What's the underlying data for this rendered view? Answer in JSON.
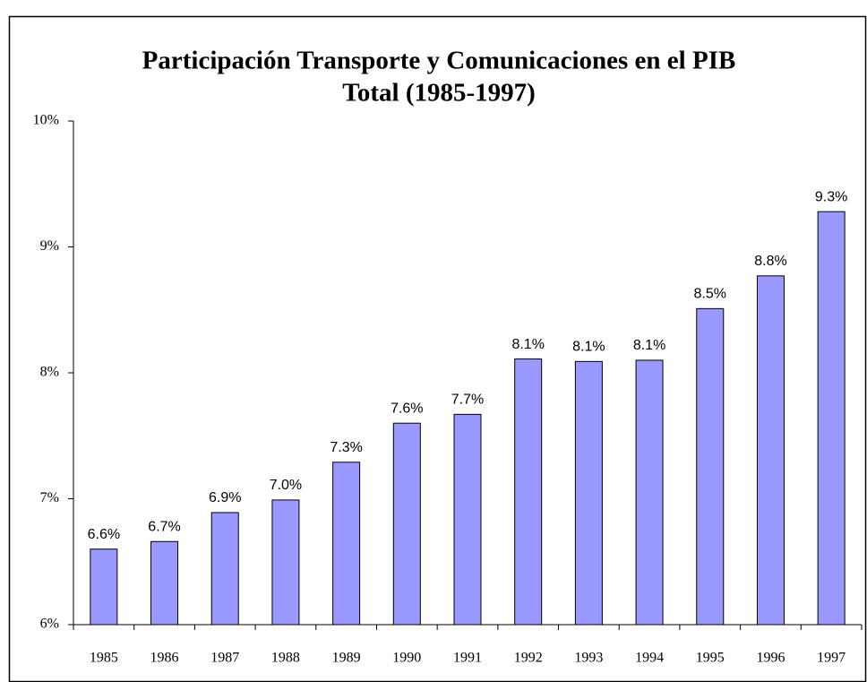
{
  "chart_data": {
    "type": "bar",
    "title": [
      "Participación Transporte y Comunicaciones en el PIB",
      "Total (1985-1997)"
    ],
    "categories": [
      "1985",
      "1986",
      "1987",
      "1988",
      "1989",
      "1990",
      "1991",
      "1992",
      "1993",
      "1994",
      "1995",
      "1996",
      "1997"
    ],
    "values": [
      6.6,
      6.66,
      6.89,
      6.99,
      7.29,
      7.6,
      7.67,
      8.11,
      8.09,
      8.1,
      8.51,
      8.77,
      9.28
    ],
    "value_labels": [
      "6.6%",
      "6.7%",
      "6.9%",
      "7.0%",
      "7.3%",
      "7.6%",
      "7.7%",
      "8.1%",
      "8.1%",
      "8.1%",
      "8.5%",
      "8.8%",
      "9.3%"
    ],
    "color": "#9999ff",
    "ylim": [
      6,
      10
    ],
    "yticks": [
      {
        "value": 6,
        "label": "6%"
      },
      {
        "value": 7,
        "label": "7%"
      },
      {
        "value": 8,
        "label": "8%"
      },
      {
        "value": 9,
        "label": "9%"
      },
      {
        "value": 10,
        "label": "10%"
      }
    ],
    "grid": false
  }
}
